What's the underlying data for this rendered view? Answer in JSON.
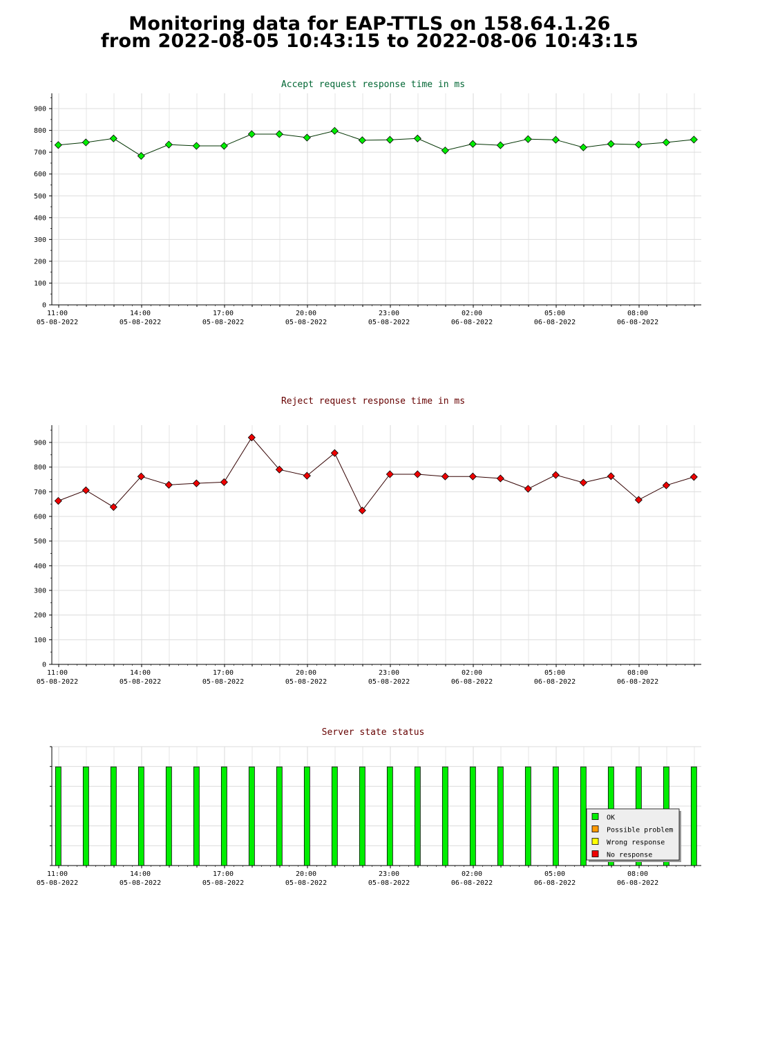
{
  "page": {
    "title_line1": "Monitoring data for EAP-TTLS on 158.64.1.26",
    "title_line2": "from 2022-08-05 10:43:15 to 2022-08-06 10:43:15"
  },
  "chart_data": [
    {
      "type": "line",
      "title": "Accept request response time in ms",
      "title_color": "#006633",
      "line_color": "#003300",
      "marker_color": "#00ee00",
      "ylim": [
        0,
        970
      ],
      "yticks": [
        0,
        100,
        200,
        300,
        400,
        500,
        600,
        700,
        800,
        900
      ],
      "grid": true,
      "x": [
        "10:53",
        "11:53",
        "12:53",
        "13:53",
        "14:53",
        "15:53",
        "16:53",
        "17:53",
        "18:53",
        "19:53",
        "20:53",
        "21:53",
        "22:53",
        "23:53",
        "00:53",
        "01:53",
        "02:53",
        "03:53",
        "04:53",
        "05:53",
        "06:53",
        "07:53",
        "08:53",
        "09:53"
      ],
      "values": [
        733,
        745,
        763,
        683,
        735,
        729,
        729,
        783,
        783,
        767,
        798,
        755,
        757,
        763,
        708,
        738,
        732,
        760,
        757,
        722,
        738,
        735,
        745,
        758
      ],
      "xtick_labels": [
        {
          "time": "11:00",
          "date": "05-08-2022"
        },
        {
          "time": "14:00",
          "date": "05-08-2022"
        },
        {
          "time": "17:00",
          "date": "05-08-2022"
        },
        {
          "time": "20:00",
          "date": "05-08-2022"
        },
        {
          "time": "23:00",
          "date": "05-08-2022"
        },
        {
          "time": "02:00",
          "date": "06-08-2022"
        },
        {
          "time": "05:00",
          "date": "06-08-2022"
        },
        {
          "time": "08:00",
          "date": "06-08-2022"
        }
      ]
    },
    {
      "type": "line",
      "title": "Reject request response time in ms",
      "title_color": "#660000",
      "line_color": "#330000",
      "marker_color": "#ee0000",
      "ylim": [
        0,
        970
      ],
      "yticks": [
        0,
        100,
        200,
        300,
        400,
        500,
        600,
        700,
        800,
        900
      ],
      "grid": true,
      "x": [
        "10:53",
        "11:53",
        "12:53",
        "13:53",
        "14:53",
        "15:53",
        "16:53",
        "17:53",
        "18:53",
        "19:53",
        "20:53",
        "21:53",
        "22:53",
        "23:53",
        "00:53",
        "01:53",
        "02:53",
        "03:53",
        "04:53",
        "05:53",
        "06:53",
        "07:53",
        "08:53",
        "09:53"
      ],
      "values": [
        663,
        706,
        638,
        762,
        728,
        734,
        739,
        920,
        790,
        765,
        857,
        624,
        771,
        771,
        762,
        762,
        754,
        712,
        768,
        737,
        763,
        667,
        726,
        760
      ],
      "xtick_labels": [
        {
          "time": "11:00",
          "date": "05-08-2022"
        },
        {
          "time": "14:00",
          "date": "05-08-2022"
        },
        {
          "time": "17:00",
          "date": "05-08-2022"
        },
        {
          "time": "20:00",
          "date": "05-08-2022"
        },
        {
          "time": "23:00",
          "date": "05-08-2022"
        },
        {
          "time": "02:00",
          "date": "06-08-2022"
        },
        {
          "time": "05:00",
          "date": "06-08-2022"
        },
        {
          "time": "08:00",
          "date": "06-08-2022"
        }
      ]
    },
    {
      "type": "bar",
      "title": "Server state status",
      "title_color": "#660000",
      "grid": true,
      "x": [
        "10:53",
        "11:53",
        "12:53",
        "13:53",
        "14:53",
        "15:53",
        "16:53",
        "17:53",
        "18:53",
        "19:53",
        "20:53",
        "21:53",
        "22:53",
        "23:53",
        "00:53",
        "01:53",
        "02:53",
        "03:53",
        "04:53",
        "05:53",
        "06:53",
        "07:53",
        "08:53",
        "09:53"
      ],
      "states": [
        "OK",
        "OK",
        "OK",
        "OK",
        "OK",
        "OK",
        "OK",
        "OK",
        "OK",
        "OK",
        "OK",
        "OK",
        "OK",
        "OK",
        "OK",
        "OK",
        "OK",
        "OK",
        "OK",
        "OK",
        "OK",
        "OK",
        "OK",
        "OK"
      ],
      "level": 0.83,
      "legend_placement": "bottom-right",
      "legend": [
        {
          "label": "OK",
          "color": "#00ee00"
        },
        {
          "label": "Possible problem",
          "color": "#ff9900"
        },
        {
          "label": "Wrong response",
          "color": "#ffff00"
        },
        {
          "label": "No response",
          "color": "#ee0000"
        }
      ],
      "xtick_labels": [
        {
          "time": "11:00",
          "date": "05-08-2022"
        },
        {
          "time": "14:00",
          "date": "05-08-2022"
        },
        {
          "time": "17:00",
          "date": "05-08-2022"
        },
        {
          "time": "20:00",
          "date": "05-08-2022"
        },
        {
          "time": "23:00",
          "date": "05-08-2022"
        },
        {
          "time": "02:00",
          "date": "06-08-2022"
        },
        {
          "time": "05:00",
          "date": "06-08-2022"
        },
        {
          "time": "08:00",
          "date": "06-08-2022"
        }
      ]
    }
  ]
}
